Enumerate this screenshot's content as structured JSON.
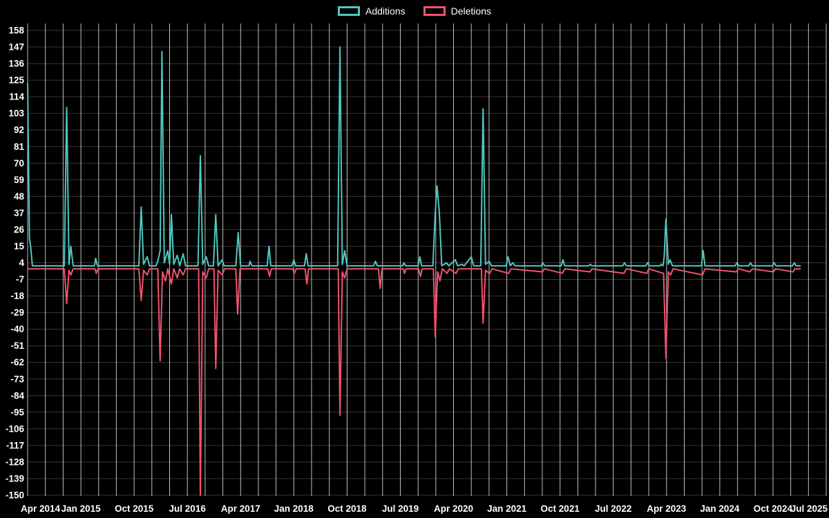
{
  "legend": {
    "additions_label": "Additions",
    "deletions_label": "Deletions"
  },
  "colors": {
    "background": "#000000",
    "additions": "#4fc8c0",
    "deletions": "#f2536f",
    "text": "#ffffff",
    "grid_vertical": "rgba(255,255,255,0.75)",
    "grid_horizontal": "rgba(255,255,255,0.22)"
  },
  "chart_data": {
    "type": "line",
    "title": "",
    "xlabel": "",
    "ylabel": "",
    "grid": true,
    "legend_position": "top-center",
    "x_unit": "months since Apr 2014",
    "xlim": [
      0,
      135
    ],
    "ylim": [
      -150,
      158
    ],
    "x_grid_step_months": 3,
    "x_tick_months": [
      0,
      9,
      18,
      27,
      36,
      45,
      54,
      63,
      72,
      81,
      90,
      99,
      108,
      117,
      126,
      135
    ],
    "x_tick_labels": [
      "Apr 2014",
      "Jan 2015",
      "Oct 2015",
      "Jul 2016",
      "Apr 2017",
      "Jan 2018",
      "Oct 2018",
      "Jul 2019",
      "Apr 2020",
      "Jan 2021",
      "Oct 2021",
      "Jul 2022",
      "Apr 2023",
      "Jan 2024",
      "Oct 2024",
      "Jul 2025"
    ],
    "y_ticks": [
      158,
      147,
      136,
      125,
      114,
      103,
      92,
      81,
      70,
      59,
      48,
      37,
      26,
      15,
      4,
      -7,
      -18,
      -29,
      -40,
      -51,
      -62,
      -73,
      -84,
      -95,
      -106,
      -117,
      -128,
      -139,
      -150
    ],
    "series": [
      {
        "name": "Additions",
        "color": "#4fc8c0",
        "points": [
          [
            0,
            123
          ],
          [
            0.3,
            20
          ],
          [
            0.5,
            15
          ],
          [
            0.8,
            2
          ],
          [
            6.2,
            2
          ],
          [
            6.6,
            107
          ],
          [
            7.0,
            3
          ],
          [
            7.3,
            15
          ],
          [
            7.7,
            2
          ],
          [
            11.3,
            2
          ],
          [
            11.5,
            7
          ],
          [
            11.8,
            2
          ],
          [
            18.8,
            2
          ],
          [
            19.2,
            41
          ],
          [
            19.6,
            3
          ],
          [
            20.2,
            8
          ],
          [
            20.6,
            2
          ],
          [
            21.7,
            2
          ],
          [
            22.0,
            5
          ],
          [
            22.4,
            12
          ],
          [
            22.7,
            144
          ],
          [
            23.1,
            4
          ],
          [
            23.7,
            12
          ],
          [
            24.0,
            3
          ],
          [
            24.3,
            36
          ],
          [
            24.7,
            3
          ],
          [
            25.3,
            9
          ],
          [
            25.7,
            2
          ],
          [
            26.3,
            10
          ],
          [
            26.7,
            2
          ],
          [
            28.8,
            2
          ],
          [
            29.2,
            75
          ],
          [
            29.6,
            3
          ],
          [
            30.2,
            8
          ],
          [
            30.6,
            2
          ],
          [
            31.4,
            2
          ],
          [
            31.8,
            36
          ],
          [
            32.2,
            2
          ],
          [
            32.9,
            6
          ],
          [
            33.2,
            2
          ],
          [
            35.2,
            2
          ],
          [
            35.6,
            24
          ],
          [
            36.0,
            2
          ],
          [
            37.4,
            2
          ],
          [
            37.6,
            5
          ],
          [
            37.9,
            2
          ],
          [
            40.5,
            2
          ],
          [
            40.8,
            15
          ],
          [
            41.1,
            2
          ],
          [
            44.7,
            2
          ],
          [
            45.0,
            6
          ],
          [
            45.3,
            2
          ],
          [
            46.8,
            2
          ],
          [
            47.1,
            10
          ],
          [
            47.4,
            2
          ],
          [
            52.4,
            2
          ],
          [
            52.8,
            147
          ],
          [
            53.2,
            3
          ],
          [
            53.6,
            12
          ],
          [
            54.0,
            2
          ],
          [
            58.5,
            2
          ],
          [
            58.8,
            5
          ],
          [
            59.1,
            2
          ],
          [
            63.4,
            2
          ],
          [
            63.6,
            4
          ],
          [
            63.9,
            2
          ],
          [
            66.0,
            2
          ],
          [
            66.3,
            8
          ],
          [
            66.6,
            2
          ],
          [
            68.5,
            2
          ],
          [
            68.9,
            37
          ],
          [
            69.2,
            55
          ],
          [
            69.6,
            37
          ],
          [
            70.0,
            2
          ],
          [
            70.8,
            4
          ],
          [
            71.2,
            2
          ],
          [
            72.3,
            6
          ],
          [
            72.7,
            2
          ],
          [
            73.4,
            3
          ],
          [
            73.8,
            2
          ],
          [
            75.0,
            8
          ],
          [
            75.4,
            2
          ],
          [
            76.6,
            2
          ],
          [
            77.0,
            106
          ],
          [
            77.4,
            3
          ],
          [
            78.0,
            5
          ],
          [
            78.4,
            2
          ],
          [
            80.9,
            2
          ],
          [
            81.2,
            8
          ],
          [
            81.6,
            2
          ],
          [
            82.0,
            4
          ],
          [
            82.4,
            2
          ],
          [
            86.8,
            2
          ],
          [
            87.1,
            4
          ],
          [
            87.4,
            2
          ],
          [
            90.2,
            2
          ],
          [
            90.5,
            6
          ],
          [
            90.8,
            2
          ],
          [
            94.9,
            2
          ],
          [
            95.1,
            3
          ],
          [
            95.4,
            2
          ],
          [
            100.6,
            2
          ],
          [
            100.9,
            4
          ],
          [
            101.2,
            2
          ],
          [
            104.5,
            2
          ],
          [
            104.8,
            4
          ],
          [
            105.1,
            2
          ],
          [
            106.9,
            2
          ],
          [
            107.1,
            3
          ],
          [
            107.4,
            2
          ],
          [
            107.6,
            8
          ],
          [
            107.9,
            33
          ],
          [
            108.3,
            3
          ],
          [
            108.6,
            6
          ],
          [
            109.0,
            2
          ],
          [
            113.9,
            2
          ],
          [
            114.2,
            12
          ],
          [
            114.5,
            2
          ],
          [
            119.6,
            2
          ],
          [
            119.9,
            4
          ],
          [
            120.2,
            2
          ],
          [
            121.9,
            2
          ],
          [
            122.2,
            4
          ],
          [
            122.5,
            2
          ],
          [
            125.9,
            2
          ],
          [
            126.2,
            4
          ],
          [
            126.5,
            2
          ],
          [
            129.3,
            2
          ],
          [
            129.6,
            4
          ],
          [
            129.9,
            2
          ],
          [
            130.6,
            2
          ]
        ]
      },
      {
        "name": "Deletions",
        "color": "#f2536f",
        "points": [
          [
            0,
            0
          ],
          [
            6.2,
            0
          ],
          [
            6.6,
            -23
          ],
          [
            7.0,
            -1
          ],
          [
            7.3,
            -4
          ],
          [
            7.7,
            0
          ],
          [
            11.4,
            0
          ],
          [
            11.6,
            -3
          ],
          [
            11.9,
            0
          ],
          [
            18.8,
            0
          ],
          [
            19.2,
            -21
          ],
          [
            19.6,
            -1
          ],
          [
            20.2,
            -4
          ],
          [
            20.6,
            0
          ],
          [
            22.0,
            0
          ],
          [
            22.4,
            -61
          ],
          [
            22.8,
            -2
          ],
          [
            23.3,
            -8
          ],
          [
            23.7,
            0
          ],
          [
            24.3,
            -10
          ],
          [
            24.7,
            0
          ],
          [
            25.3,
            -6
          ],
          [
            25.7,
            0
          ],
          [
            26.3,
            -4
          ],
          [
            26.7,
            0
          ],
          [
            28.9,
            0
          ],
          [
            29.2,
            -150
          ],
          [
            29.6,
            -2
          ],
          [
            30.2,
            -6
          ],
          [
            30.6,
            0
          ],
          [
            31.5,
            0
          ],
          [
            31.8,
            -66
          ],
          [
            32.2,
            -1
          ],
          [
            32.9,
            -4
          ],
          [
            33.3,
            0
          ],
          [
            35.2,
            0
          ],
          [
            35.5,
            -30
          ],
          [
            35.9,
            0
          ],
          [
            40.6,
            0
          ],
          [
            40.9,
            -5
          ],
          [
            41.2,
            0
          ],
          [
            44.8,
            0
          ],
          [
            45.1,
            -3
          ],
          [
            45.4,
            0
          ],
          [
            46.9,
            0
          ],
          [
            47.2,
            -10
          ],
          [
            47.5,
            0
          ],
          [
            52.5,
            0
          ],
          [
            52.8,
            -97
          ],
          [
            53.2,
            -2
          ],
          [
            53.6,
            -6
          ],
          [
            54.0,
            0
          ],
          [
            59.3,
            0
          ],
          [
            59.6,
            -13
          ],
          [
            59.9,
            0
          ],
          [
            63.5,
            0
          ],
          [
            63.7,
            -3
          ],
          [
            64.0,
            0
          ],
          [
            66.1,
            0
          ],
          [
            66.4,
            -5
          ],
          [
            66.7,
            0
          ],
          [
            68.6,
            0
          ],
          [
            68.9,
            -45
          ],
          [
            69.3,
            -2
          ],
          [
            69.7,
            -8
          ],
          [
            70.1,
            0
          ],
          [
            70.9,
            -3
          ],
          [
            71.3,
            0
          ],
          [
            72.4,
            -3
          ],
          [
            72.8,
            0
          ],
          [
            76.7,
            0
          ],
          [
            77.0,
            -36
          ],
          [
            77.4,
            -1
          ],
          [
            78.1,
            -3
          ],
          [
            78.5,
            0
          ],
          [
            81.3,
            -3
          ],
          [
            81.7,
            0
          ],
          [
            87.0,
            -2
          ],
          [
            87.4,
            0
          ],
          [
            90.4,
            -3
          ],
          [
            90.8,
            0
          ],
          [
            95.1,
            -2
          ],
          [
            95.4,
            0
          ],
          [
            100.8,
            -3
          ],
          [
            101.2,
            0
          ],
          [
            104.7,
            -3
          ],
          [
            105.0,
            0
          ],
          [
            107.5,
            -3
          ],
          [
            107.9,
            -59
          ],
          [
            108.3,
            -2
          ],
          [
            108.7,
            -4
          ],
          [
            109.1,
            0
          ],
          [
            114.1,
            -4
          ],
          [
            114.5,
            0
          ],
          [
            119.8,
            -2
          ],
          [
            120.2,
            0
          ],
          [
            122.1,
            -2
          ],
          [
            122.5,
            0
          ],
          [
            126.1,
            -2
          ],
          [
            126.4,
            0
          ],
          [
            129.4,
            -2
          ],
          [
            129.7,
            0
          ],
          [
            130.6,
            0
          ]
        ]
      }
    ]
  }
}
